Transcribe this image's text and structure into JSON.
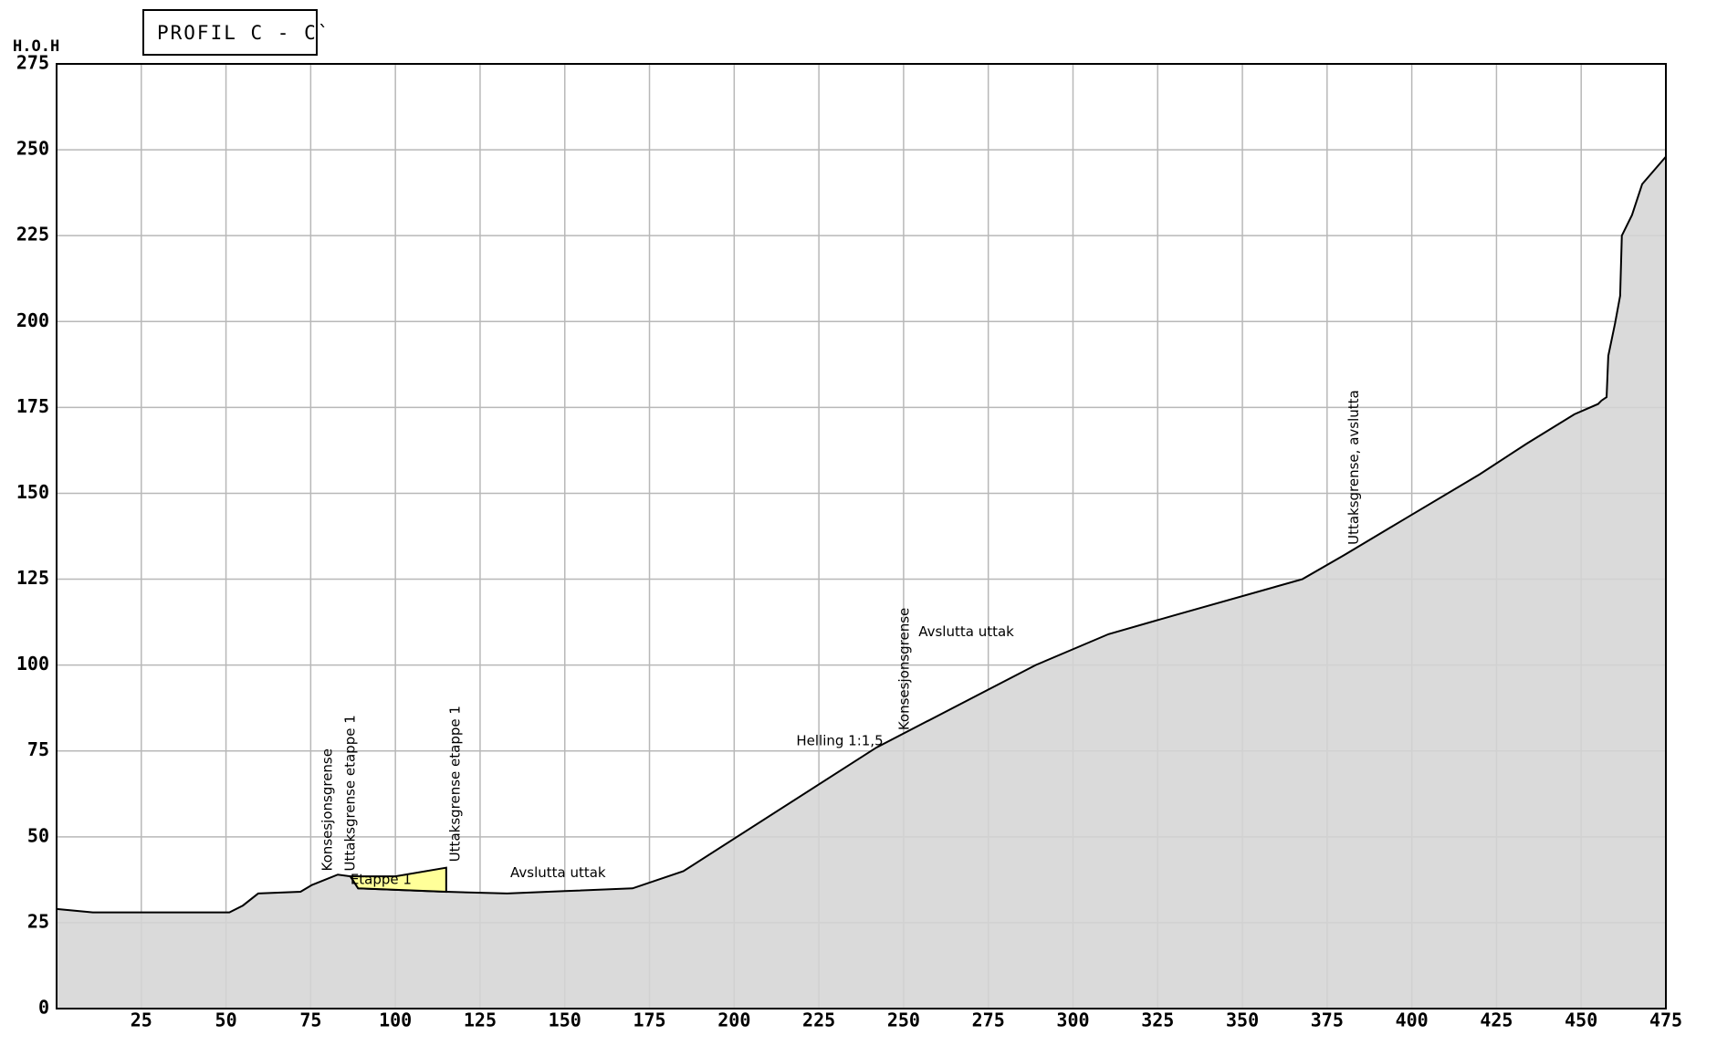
{
  "chart_data": {
    "type": "area",
    "title": "PROFIL C - C`",
    "y_label": "H.O.H",
    "xlim": [
      0,
      475
    ],
    "ylim": [
      0,
      275
    ],
    "xticks": [
      25,
      50,
      75,
      100,
      125,
      150,
      175,
      200,
      225,
      250,
      275,
      300,
      325,
      350,
      375,
      400,
      425,
      450,
      475
    ],
    "yticks": [
      0,
      25,
      50,
      75,
      100,
      125,
      150,
      175,
      200,
      225,
      250,
      275
    ],
    "grid": true,
    "series": [
      {
        "color": "#d9d9d9",
        "x": [
          0,
          10.7,
          51,
          55,
          59.5,
          72,
          75.4,
          83,
          86.7,
          89,
          115,
          133,
          150,
          170,
          185,
          242,
          289,
          310.5,
          330,
          367.7,
          380,
          397,
          420,
          434,
          448,
          455,
          456,
          457.5,
          458,
          460,
          461.5,
          462,
          465,
          468,
          475
        ],
        "values": [
          29,
          28,
          28,
          30,
          33.5,
          34,
          36,
          39,
          38.5,
          35,
          34,
          33.5,
          34.2,
          35,
          40,
          76,
          100,
          109,
          114.5,
          125,
          132,
          142,
          155.5,
          164.5,
          173,
          176,
          177,
          178,
          190,
          199.5,
          207.5,
          225,
          231,
          240,
          248
        ]
      },
      {
        "name": "Etappe 1",
        "color": "#ffff99",
        "x": [
          86.7,
          100,
          115,
          115,
          89
        ],
        "values": [
          38.5,
          38.5,
          41,
          34,
          35
        ]
      }
    ],
    "annotations": [
      {
        "text": "Konsesjonsgrense",
        "x": 80,
        "y": 40,
        "vertical": true
      },
      {
        "text": "Uttaksgrense etappe 1",
        "x": 86.7,
        "y": 40,
        "vertical": true
      },
      {
        "text": "Uttaksgrense etappe 1",
        "x": 117.7,
        "y": 42.7,
        "vertical": true
      },
      {
        "text": "Avslutta uttak",
        "x": 148,
        "y": 39.5,
        "vertical": false
      },
      {
        "text": "Helling 1:1,5",
        "x": 244,
        "y": 77.8,
        "vertical": false,
        "anchor": "end"
      },
      {
        "text": "Konsesjonsgrense",
        "x": 250.3,
        "y": 81,
        "vertical": true
      },
      {
        "text": "Avslutta uttak",
        "x": 268.5,
        "y": 109.6,
        "vertical": false
      },
      {
        "text": "Uttaksgrense, avslutta",
        "x": 383,
        "y": 135,
        "vertical": true
      }
    ]
  }
}
